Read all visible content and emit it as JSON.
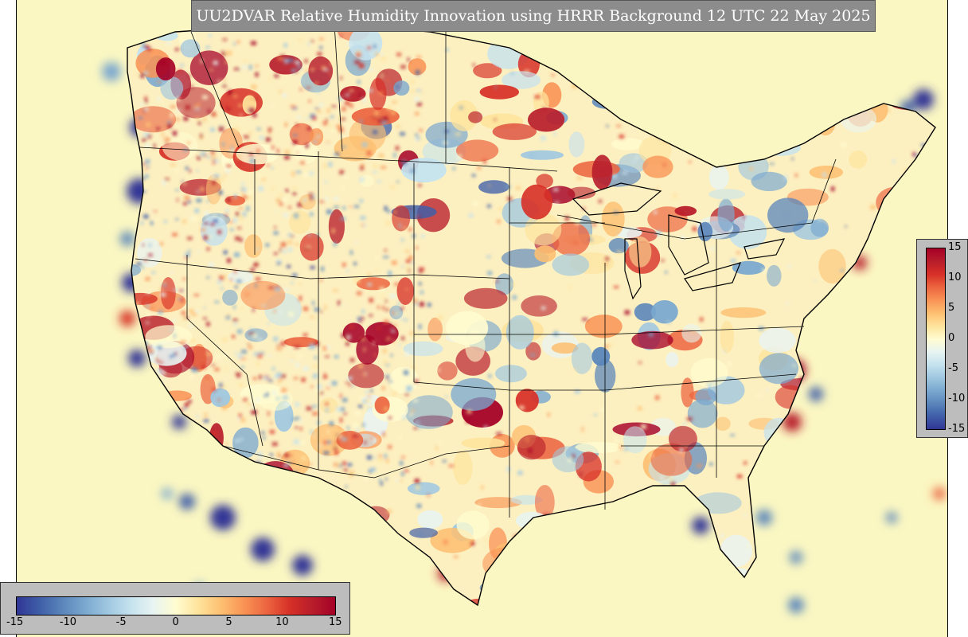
{
  "title": "UU2DVAR Relative Humidity Innovation using HRRR Background 12 UTC 22 May 2025",
  "colorbar": {
    "min": -15,
    "max": 15,
    "ticks_vertical": [
      "15",
      "10",
      "5",
      "0",
      "-5",
      "-10",
      "-15"
    ],
    "ticks_horizontal": [
      "-15",
      "-10",
      "-5",
      "0",
      "5",
      "10",
      "15"
    ],
    "colors": [
      "#313695",
      "#3f5ea8",
      "#5a86bb",
      "#7aa8cf",
      "#9fc7e0",
      "#c5e2ee",
      "#e8f4f2",
      "#fffcd0",
      "#fee39b",
      "#fdbf71",
      "#f99355",
      "#ec6540",
      "#d73027",
      "#b81d2b",
      "#a50026"
    ]
  },
  "colors": {
    "ocean_background": "#fbf7c2",
    "coastline": "#000000",
    "title_panel": "#8c8c8c",
    "colorbar_panel": "#bdbdbd"
  }
}
